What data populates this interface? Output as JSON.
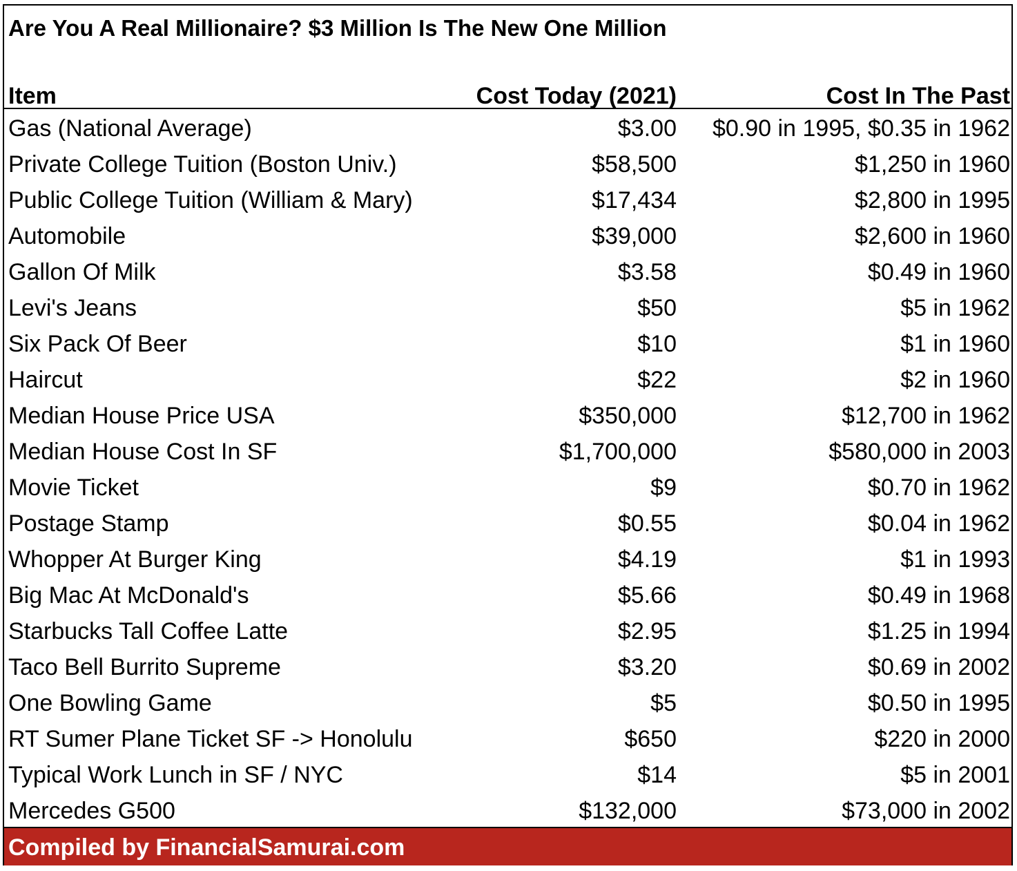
{
  "title": "Are You A Real Millionaire? $3 Million Is The New One Million",
  "headers": [
    "Item",
    "Cost Today (2021)",
    "Cost In The Past"
  ],
  "rows": [
    [
      "Gas (National Average)",
      "$3.00",
      "$0.90 in 1995, $0.35 in 1962"
    ],
    [
      "Private College Tuition (Boston Univ.)",
      "$58,500",
      "$1,250 in 1960"
    ],
    [
      "Public College Tuition (William & Mary)",
      "$17,434",
      "$2,800 in 1995"
    ],
    [
      "Automobile",
      "$39,000",
      "$2,600 in 1960"
    ],
    [
      "Gallon Of Milk",
      "$3.58",
      "$0.49 in 1960"
    ],
    [
      "Levi's Jeans",
      "$50",
      "$5 in 1962"
    ],
    [
      "Six Pack Of Beer",
      "$10",
      "$1 in 1960"
    ],
    [
      "Haircut",
      "$22",
      "$2 in 1960"
    ],
    [
      "Median House Price USA",
      "$350,000",
      "$12,700 in 1962"
    ],
    [
      "Median House Cost In SF",
      "$1,700,000",
      "$580,000 in 2003"
    ],
    [
      "Movie Ticket",
      "$9",
      "$0.70 in 1962"
    ],
    [
      "Postage Stamp",
      "$0.55",
      "$0.04 in 1962"
    ],
    [
      "Whopper At Burger King",
      "$4.19",
      "$1 in 1993"
    ],
    [
      "Big Mac At McDonald's",
      "$5.66",
      "$0.49 in 1968"
    ],
    [
      "Starbucks Tall Coffee Latte",
      "$2.95",
      "$1.25 in 1994"
    ],
    [
      "Taco Bell Burrito Supreme",
      "$3.20",
      "$0.69 in 2002"
    ],
    [
      "One Bowling Game",
      "$5",
      "$0.50 in 1995"
    ],
    [
      "RT Sumer Plane Ticket SF -> Honolulu",
      "$650",
      "$220 in 2000"
    ],
    [
      "Typical Work Lunch in SF / NYC",
      "$14",
      "$5 in 2001"
    ],
    [
      "Mercedes G500",
      "$132,000",
      "$73,000 in 2002"
    ]
  ],
  "footer": "Compiled by FinancialSamurai.com",
  "colors": {
    "footer_bg": "#B8261E",
    "footer_text": "#FFFFFF"
  }
}
